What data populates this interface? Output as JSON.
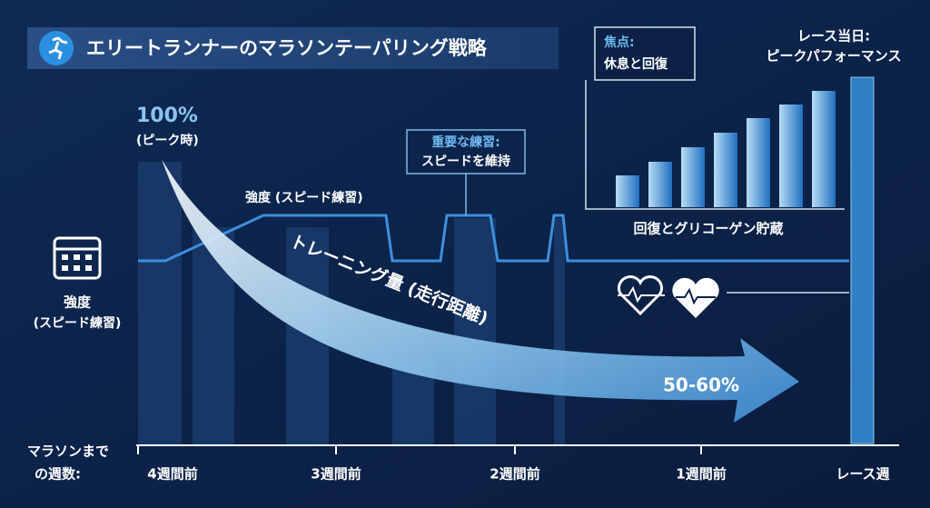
{
  "header": {
    "title": "エリートランナーのマラソンテーパリング戦略"
  },
  "peak": {
    "value": "100%",
    "note": "(ピーク時)"
  },
  "intensity_line_label": "強度 (スピード練習)",
  "legend": {
    "label": "強度",
    "sub": "(スピード練習)"
  },
  "callout": {
    "title": "重要な練習:",
    "text": "スピードを維持"
  },
  "volume_arrow": {
    "label": "トレーニング量 (走行距離)",
    "end": "50-60%"
  },
  "focus": {
    "title": "焦点:",
    "text": "休息と回復"
  },
  "recovery_label": "回復とグリコーゲン貯蔵",
  "race_day": {
    "title": "レース当日:",
    "text": "ピークパフォーマンス"
  },
  "axis": {
    "label_line1": "マラソンまで",
    "label_line2": "の週数:",
    "weeks": [
      "4週間前",
      "3週間前",
      "2週間前",
      "1週間前",
      "レース週"
    ]
  }
}
